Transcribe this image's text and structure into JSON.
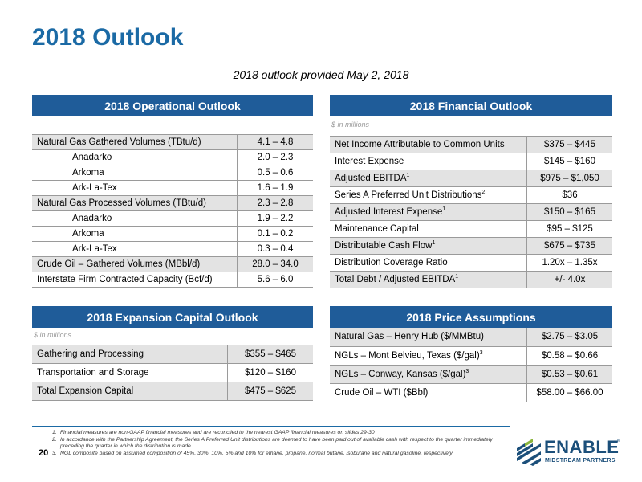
{
  "title": "2018 Outlook",
  "subtitle": "2018 outlook provided May 2, 2018",
  "operational": {
    "header": "2018 Operational Outlook",
    "rows": [
      {
        "label": "Natural Gas Gathered Volumes (TBtu/d)",
        "value": "4.1 – 4.8"
      },
      {
        "label": "Anadarko",
        "value": "2.0 – 2.3"
      },
      {
        "label": "Arkoma",
        "value": "0.5 – 0.6"
      },
      {
        "label": "Ark-La-Tex",
        "value": "1.6 – 1.9"
      },
      {
        "label": "Natural Gas Processed Volumes (TBtu/d)",
        "value": "2.3 – 2.8"
      },
      {
        "label": "Anadarko",
        "value": "1.9 – 2.2"
      },
      {
        "label": "Arkoma",
        "value": "0.1 – 0.2"
      },
      {
        "label": "Ark-La-Tex",
        "value": "0.3 – 0.4"
      },
      {
        "label": "Crude Oil – Gathered Volumes (MBbl/d)",
        "value": "28.0 – 34.0"
      },
      {
        "label": "Interstate Firm Contracted Capacity (Bcf/d)",
        "value": "5.6 – 6.0"
      }
    ]
  },
  "financial": {
    "header": "2018 Financial Outlook",
    "unit": "$ in millions",
    "rows": [
      {
        "label": "Net Income Attributable to Common Units",
        "sup": "",
        "value": "$375 – $445"
      },
      {
        "label": "Interest Expense",
        "sup": "",
        "value": "$145 – $160"
      },
      {
        "label": "Adjusted EBITDA",
        "sup": "1",
        "value": "$975 – $1,050"
      },
      {
        "label": "Series A Preferred Unit Distributions",
        "sup": "2",
        "value": "$36"
      },
      {
        "label": "Adjusted Interest Expense",
        "sup": "1",
        "value": "$150 – $165"
      },
      {
        "label": "Maintenance Capital",
        "sup": "",
        "value": "$95 – $125"
      },
      {
        "label": "Distributable Cash Flow",
        "sup": "1",
        "value": "$675 – $735"
      },
      {
        "label": "Distribution Coverage Ratio",
        "sup": "",
        "value": "1.20x – 1.35x"
      },
      {
        "label": "Total Debt / Adjusted EBITDA",
        "sup": "1",
        "value": "+/- 4.0x"
      }
    ]
  },
  "expansion": {
    "header": "2018 Expansion Capital Outlook",
    "unit": "$ in millions",
    "rows": [
      {
        "label": "Gathering and Processing",
        "value": "$355 – $465"
      },
      {
        "label": "Transportation and Storage",
        "value": "$120 – $160"
      },
      {
        "label": "Total Expansion Capital",
        "value": "$475 – $625"
      }
    ]
  },
  "price": {
    "header": "2018 Price Assumptions",
    "rows": [
      {
        "label": "Natural Gas – Henry Hub ($/MMBtu)",
        "sup": "",
        "value": "$2.75 – $3.05"
      },
      {
        "label": "NGLs – Mont Belvieu, Texas ($/gal)",
        "sup": "3",
        "value": "$0.58 – $0.66"
      },
      {
        "label": "NGLs – Conway, Kansas ($/gal)",
        "sup": "3",
        "value": "$0.53 – $0.61"
      },
      {
        "label": "Crude Oil – WTI ($Bbl)",
        "sup": "",
        "value": "$58.00 – $66.00"
      }
    ]
  },
  "footnotes": [
    {
      "n": "1.",
      "text": "Financial measures are non-GAAP financial measures and are reconciled to the nearest GAAP financial measures on slides 29-30"
    },
    {
      "n": "2.",
      "text": "In accordance with the Partnership Agreement, the Series A Preferred Unit distributions are deemed to have been paid out of available cash with respect to the quarter immediately preceding the quarter in which the distribution is made."
    },
    {
      "n": "3.",
      "text": "NGL composite based on assumed composition of 45%, 30%, 10%, 5% and 10% for ethane, propane, normal butane, isobutane and natural gasoline, respectively"
    }
  ],
  "page_number": "20",
  "logo": {
    "word": "ENABLE",
    "tm": "TM",
    "sub": "MIDSTREAM PARTNERS"
  },
  "colors": {
    "accent": "#1b6aa5",
    "header_bg": "#1f5c99",
    "row_shade": "#e3e3e3"
  }
}
